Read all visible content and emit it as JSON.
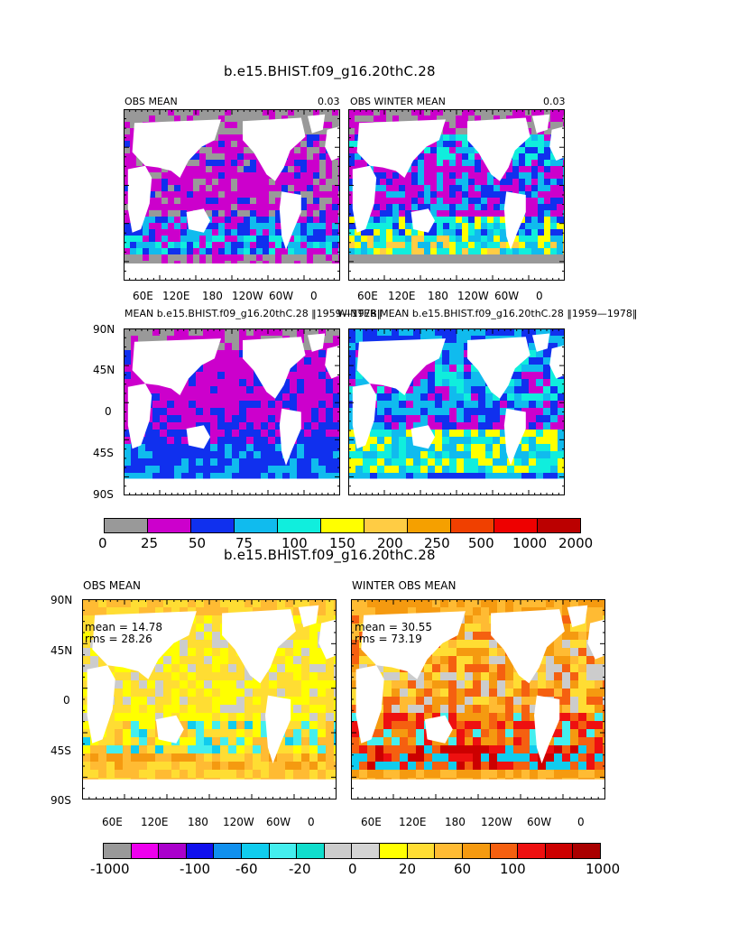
{
  "figure1": {
    "title": "b.e15.BHIST.f09_g16.20thC.28",
    "panels": [
      {
        "left_title": "OBS MEAN",
        "right_title": "0.03"
      },
      {
        "left_title": "OBS WINTER MEAN",
        "right_title": "0.03"
      },
      {
        "left_title": "MEAN b.e15.BHIST.f09_g16.20thC.28 ‖1959—1978‖",
        "right_title": ""
      },
      {
        "left_title": "WINTER MEAN b.e15.BHIST.f09_g16.20thC.28 ‖1959—1978‖",
        "right_title": ""
      }
    ],
    "lon_ticks": [
      "60E",
      "120E",
      "180",
      "120W",
      "60W",
      "0"
    ],
    "lat_ticks": [
      "90N",
      "45N",
      "0",
      "45S",
      "90S"
    ],
    "colorbar": {
      "labels": [
        "0",
        "25",
        "50",
        "75",
        "100",
        "150",
        "200",
        "250",
        "500",
        "1000",
        "2000"
      ],
      "colors": [
        "#999999",
        "#cc00cc",
        "#1030ee",
        "#10bbee",
        "#10eedd",
        "#ffff00",
        "#ffcc44",
        "#f5a000",
        "#f04000",
        "#ee0000",
        "#bb0000"
      ]
    }
  },
  "figure2": {
    "title": "b.e15.BHIST.f09_g16.20thC.28",
    "panels": [
      {
        "left_title": "OBS MEAN",
        "mean": "mean = 14.78",
        "rms": "rms = 28.26"
      },
      {
        "left_title": "WINTER OBS MEAN",
        "mean": "mean = 30.55",
        "rms": "rms = 73.19"
      }
    ],
    "lon_ticks": [
      "60E",
      "120E",
      "180",
      "120W",
      "60W",
      "0"
    ],
    "lat_ticks": [
      "90N",
      "45N",
      "0",
      "45S",
      "90S"
    ],
    "colorbar": {
      "labels": [
        "-1000",
        "-100",
        "-60",
        "-20",
        "0",
        "20",
        "60",
        "100",
        "1000"
      ],
      "colors": [
        "#999999",
        "#ee00ee",
        "#aa00cc",
        "#1010ee",
        "#1090ee",
        "#10ccee",
        "#44eeee",
        "#10ddcc",
        "#cccccc",
        "#d4d4d4",
        "#ffff00",
        "#ffdd33",
        "#ffbb33",
        "#f59a10",
        "#f56010",
        "#ee1010",
        "#cc0000",
        "#aa0000"
      ]
    }
  }
}
